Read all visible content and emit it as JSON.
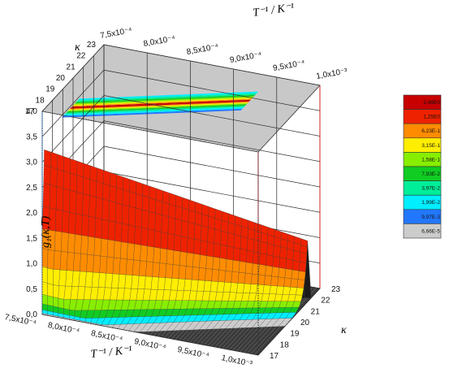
{
  "chart_data": {
    "type": "surface3d",
    "title": "",
    "xlabel": "T⁻¹ / K⁻¹",
    "ylabel": "κ",
    "zlabel": "g₁(κ,T)",
    "top_xlabel": "T⁻¹ / K⁻¹",
    "top_ylabel": "κ",
    "x_ticks": [
      "7,5x10⁻⁴",
      "8,0x10⁻⁴",
      "8,5x10⁻⁴",
      "9,0x10⁻⁴",
      "9,5x10⁻⁴",
      "1,0x10⁻³"
    ],
    "x_tick_values": [
      0.00075,
      0.0008,
      0.00085,
      0.0009,
      0.00095,
      0.001
    ],
    "y_ticks": [
      "17",
      "18",
      "19",
      "20",
      "21",
      "22",
      "23"
    ],
    "z_ticks": [
      "0,0",
      "0,5",
      "1,0",
      "1,5",
      "2,0",
      "2,5",
      "3,0",
      "3,5",
      "4,0"
    ],
    "xlim": [
      0.00075,
      0.001
    ],
    "ylim": [
      17,
      23
    ],
    "zlim": [
      0,
      4.0
    ],
    "ridge": {
      "kappa_start": 17.2,
      "kappa_end": 21.8,
      "inv_T_start": 0.00075,
      "inv_T_end": 0.001,
      "peak_height_start": 3.2,
      "peak_height_end": 1.2
    },
    "legend": {
      "placement": "right",
      "levels": [
        {
          "label": "2,49E0",
          "color": "#c80000"
        },
        {
          "label": "1,25E0",
          "color": "#ee2200"
        },
        {
          "label": "6,23E-1",
          "color": "#ff8c00"
        },
        {
          "label": "3,15E-1",
          "color": "#ffee00"
        },
        {
          "label": "1,58E-1",
          "color": "#88ee00"
        },
        {
          "label": "7,93E-2",
          "color": "#11cc22"
        },
        {
          "label": "3,97E-2",
          "color": "#00ee99"
        },
        {
          "label": "1,99E-2",
          "color": "#00eeff"
        },
        {
          "label": "9,97E-3",
          "color": "#2277ff"
        },
        {
          "label": "6,66E-5",
          "color": "#cccccc"
        }
      ]
    },
    "grid": true,
    "projection_on_top": true
  }
}
